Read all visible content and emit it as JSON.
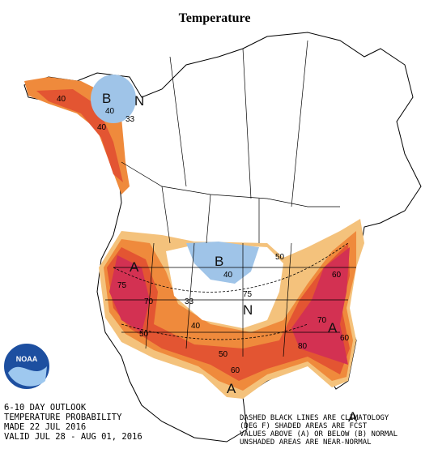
{
  "title": "Temperature",
  "outlook": [
    "6-10 DAY OUTLOOK",
    "TEMPERATURE PROBABILITY",
    "MADE  22 JUL 2016",
    "VALID  JUL 28 - AUG 01, 2016"
  ],
  "legend_note": [
    "DASHED BLACK LINES ARE CLIMATOLOGY",
    "(DEG F) SHADED AREAS ARE FCST",
    "VALUES ABOVE (A) OR BELOW (B) NORMAL",
    "UNSHADED AREAS ARE NEAR-NORMAL"
  ],
  "logo": "NOAA",
  "map_labels": [
    "B",
    "N",
    "40",
    "33",
    "40",
    "40",
    "B",
    "40",
    "N",
    "75",
    "33",
    "A",
    "75",
    "70",
    "50",
    "40",
    "50",
    "60",
    "A",
    "A",
    "60",
    "70",
    "80",
    "A",
    "50",
    "60"
  ]
}
